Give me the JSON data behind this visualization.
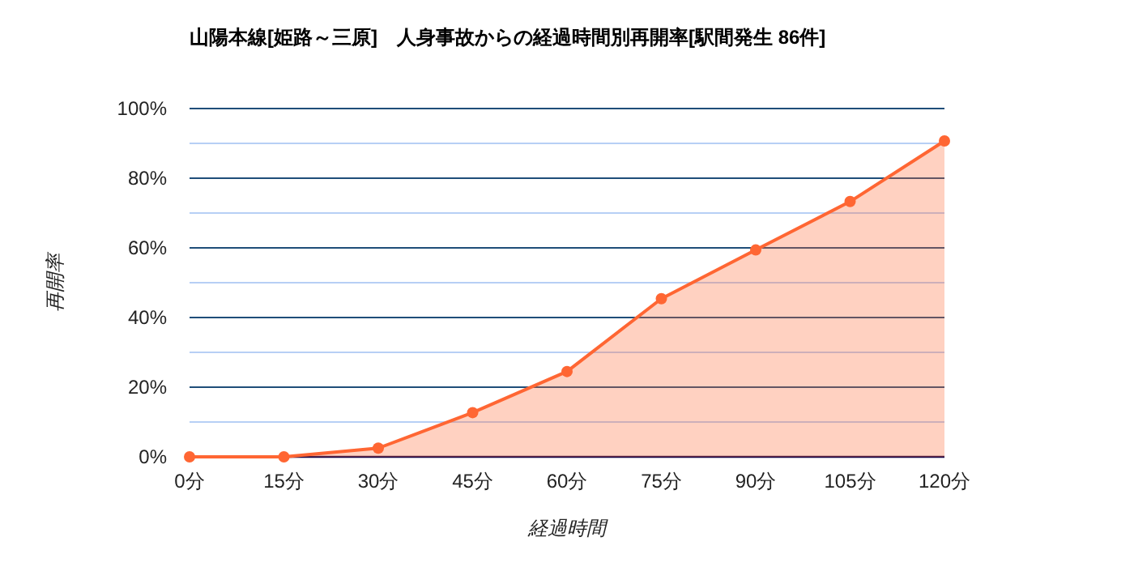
{
  "chart_data": {
    "type": "area",
    "title": "山陽本線[姫路～三原]　人身事故からの経過時間別再開率[駅間発生 86件]",
    "xlabel": "経過時間",
    "ylabel": "再開率",
    "categories": [
      "0分",
      "15分",
      "30分",
      "45分",
      "60分",
      "75分",
      "90分",
      "105分",
      "120分"
    ],
    "series": [
      {
        "color": "#ff6633",
        "values": [
          0,
          0,
          2.5,
          12.7,
          24.5,
          45.4,
          59.4,
          73.3,
          90.7
        ]
      }
    ],
    "ylim": [
      0,
      100
    ],
    "yticks": [
      {
        "value": 0,
        "label": "0%"
      },
      {
        "value": 10,
        "label": null
      },
      {
        "value": 20,
        "label": "20%"
      },
      {
        "value": 30,
        "label": null
      },
      {
        "value": 40,
        "label": "40%"
      },
      {
        "value": 50,
        "label": null
      },
      {
        "value": 60,
        "label": "60%"
      },
      {
        "value": 70,
        "label": null
      },
      {
        "value": 80,
        "label": "80%"
      },
      {
        "value": 90,
        "label": null
      },
      {
        "value": 100,
        "label": "100%"
      }
    ],
    "grid": "y",
    "marker": "circle",
    "line_style": "solid"
  }
}
